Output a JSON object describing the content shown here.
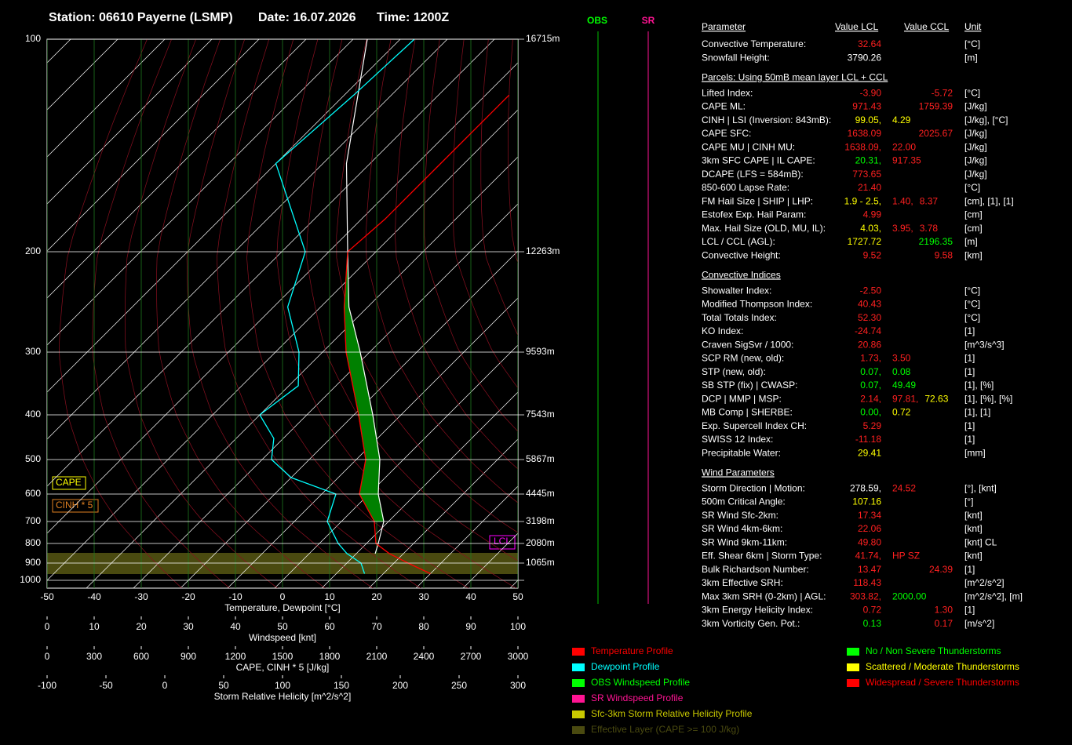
{
  "header": {
    "station": "Station: 06610 Payerne (LSMP)",
    "date": "Date: 16.07.2026",
    "time": "Time: 1200Z"
  },
  "chart_data": {
    "type": "skewt",
    "xlim": [
      -50,
      50
    ],
    "xticks": [
      -50,
      -40,
      -30,
      -20,
      -10,
      0,
      10,
      20,
      30,
      40,
      50
    ],
    "xlabel": "Temperature, Dewpoint [°C]",
    "yticks": [
      100,
      200,
      300,
      400,
      500,
      600,
      700,
      800,
      900,
      1000
    ],
    "height_labels": [
      "16715m",
      "12263m",
      "9593m",
      "7543m",
      "5867m",
      "4445m",
      "3198m",
      "2080m",
      "1065m",
      null
    ],
    "series": [
      {
        "name": "Temperature Profile",
        "color": "#ff0000",
        "pressure": [
          960,
          900,
          850,
          800,
          700,
          600,
          500,
          400,
          300,
          250,
          200,
          180,
          150,
          120
        ],
        "values": [
          30,
          23,
          17,
          12,
          7,
          -2,
          -8,
          -19,
          -35,
          -45,
          -56,
          -55,
          -55,
          -55
        ]
      },
      {
        "name": "Dewpoint Profile",
        "color": "#00ffff",
        "pressure": [
          960,
          900,
          850,
          800,
          700,
          600,
          550,
          500,
          450,
          400,
          350,
          300,
          250,
          200,
          150,
          120,
          100
        ],
        "values": [
          16,
          13,
          8,
          4,
          -3,
          -7,
          -20,
          -28,
          -32,
          -40,
          -38,
          -45,
          -57,
          -65,
          -90,
          -88,
          -87
        ]
      }
    ],
    "parcel": {
      "color": "#ffffff",
      "pressure": [
        850,
        800,
        700,
        600,
        500,
        400,
        300,
        250,
        200,
        150,
        100
      ],
      "values": [
        14,
        12.5,
        9,
        2,
        -5,
        -16,
        -32,
        -44,
        -56,
        -75,
        -97
      ]
    },
    "other_legend": [
      {
        "label": "OBS Windspeed Profile",
        "color": "#00ff00"
      },
      {
        "label": "SR Windspeed Profile",
        "color": "#ff1493"
      },
      {
        "label": "Sfc-3km Storm Relative Helicity Profile",
        "color": "#c8c800"
      },
      {
        "label": "Effective Layer (CAPE >= 100 J/kg)",
        "color": "#4a4a10"
      }
    ],
    "storm_legend": [
      {
        "label": "No / Non Severe Thunderstorms",
        "color": "#00ff00"
      },
      {
        "label": "Scattered / Moderate Thunderstorms",
        "color": "#ffff00"
      },
      {
        "label": "Widespread / Severe Thunderstorms",
        "color": "#ff0000"
      }
    ],
    "wind_axis": {
      "label": "Windspeed [knt]",
      "lim": [
        0,
        100
      ],
      "ticks": [
        0,
        10,
        20,
        30,
        40,
        50,
        60,
        70,
        80,
        90,
        100
      ]
    },
    "cape_axis": {
      "label": "CAPE, CINH * 5 [J/kg]",
      "lim": [
        0,
        3000
      ],
      "ticks": [
        0,
        300,
        600,
        900,
        1200,
        1500,
        1800,
        2100,
        2400,
        2700,
        3000
      ]
    },
    "srh_axis": {
      "label": "Storm Relative Helicity [m^2/s^2]",
      "lim": [
        -100,
        300
      ],
      "ticks": [
        -100,
        -50,
        0,
        50,
        100,
        150,
        200,
        250,
        300
      ]
    },
    "boxes": {
      "cape": "CAPE",
      "cinh": "CINH * 5",
      "lcl": "LCL"
    },
    "columns": {
      "obs": "OBS",
      "sr": "SR"
    }
  },
  "table": {
    "header": {
      "parameter": "Parameter",
      "lcl": "Value LCL",
      "ccl": "Value CCL",
      "unit": "Unit"
    },
    "sections": [
      {
        "rows": [
          {
            "label": "Convective Temperature:",
            "lcl": [
              {
                "text": "32.64",
                "color": "#ff2020"
              }
            ],
            "unit": "[°C]"
          },
          {
            "label": "Snowfall Height:",
            "lcl": [
              {
                "text": "3790.26",
                "color": "#ffffff"
              }
            ],
            "unit": "[m]"
          }
        ]
      },
      {
        "title": "Parcels: Using 50mB mean layer LCL + CCL",
        "rows": [
          {
            "label": "Lifted Index:",
            "lcl": [
              {
                "text": "-3.90",
                "color": "#ff2020"
              }
            ],
            "ccl": {
              "text": "-5.72",
              "color": "#ff2020"
            },
            "unit": "[°C]"
          },
          {
            "label": "CAPE ML:",
            "lcl": [
              {
                "text": "971.43",
                "color": "#ff2020"
              }
            ],
            "ccl": {
              "text": "1759.39",
              "color": "#ff2020"
            },
            "unit": "[J/kg]"
          },
          {
            "label": "CINH | LSI (Inversion: 843mB):",
            "lcl": [
              {
                "text": "99.05,",
                "color": "#ffff00"
              },
              {
                "text": "4.29",
                "color": "#ffff00"
              }
            ],
            "unit": "[J/kg], [°C]"
          },
          {
            "label": "CAPE SFC:",
            "lcl": [
              {
                "text": "1638.09",
                "color": "#ff2020"
              }
            ],
            "ccl": {
              "text": "2025.67",
              "color": "#ff2020"
            },
            "unit": "[J/kg]"
          },
          {
            "label": "CAPE MU | CINH MU:",
            "lcl": [
              {
                "text": "1638.09,",
                "color": "#ff2020"
              },
              {
                "text": "22.00",
                "color": "#ff2020"
              }
            ],
            "unit": "[J/kg]"
          },
          {
            "label": "3km SFC CAPE | IL CAPE:",
            "lcl": [
              {
                "text": "20.31,",
                "color": "#00ff00"
              },
              {
                "text": "917.35",
                "color": "#ff2020"
              }
            ],
            "unit": "[J/kg]"
          },
          {
            "label": "DCAPE (LFS = 584mB):",
            "lcl": [
              {
                "text": "773.65",
                "color": "#ff2020"
              }
            ],
            "unit": "[J/kg]"
          },
          {
            "label": "850-600 Lapse Rate:",
            "lcl": [
              {
                "text": "21.40",
                "color": "#ff2020"
              }
            ],
            "unit": "[°C]"
          },
          {
            "label": "FM Hail Size | SHIP | LHP:",
            "lcl": [
              {
                "text": "1.9 - 2.5,",
                "color": "#ffff00"
              },
              {
                "text": "1.40,",
                "color": "#ff2020"
              },
              {
                "text": "8.37",
                "color": "#ff2020"
              }
            ],
            "unit": "[cm], [1], [1]"
          },
          {
            "label": "Estofex Exp. Hail Param:",
            "lcl": [
              {
                "text": "4.99",
                "color": "#ff2020"
              }
            ],
            "unit": "[cm]"
          },
          {
            "label": "Max. Hail Size (OLD, MU, IL):",
            "lcl": [
              {
                "text": "4.03,",
                "color": "#ffff00"
              },
              {
                "text": "3.95,",
                "color": "#ff2020"
              },
              {
                "text": "3.78",
                "color": "#ff2020"
              }
            ],
            "unit": "[cm]"
          },
          {
            "label": "LCL / CCL (AGL):",
            "lcl": [
              {
                "text": "1727.72",
                "color": "#ffff00"
              }
            ],
            "ccl": {
              "text": "2196.35",
              "color": "#00ff00"
            },
            "unit": "[m]"
          },
          {
            "label": "Convective Height:",
            "lcl": [
              {
                "text": "9.52",
                "color": "#ff2020"
              }
            ],
            "ccl": {
              "text": "9.58",
              "color": "#ff2020"
            },
            "unit": "[km]"
          }
        ]
      },
      {
        "title": "Convective Indices",
        "rows": [
          {
            "label": "Showalter Index:",
            "lcl": [
              {
                "text": "-2.50",
                "color": "#ff2020"
              }
            ],
            "unit": "[°C]"
          },
          {
            "label": "Modified Thompson Index:",
            "lcl": [
              {
                "text": "40.43",
                "color": "#ff2020"
              }
            ],
            "unit": "[°C]"
          },
          {
            "label": "Total Totals Index:",
            "lcl": [
              {
                "text": "52.30",
                "color": "#ff2020"
              }
            ],
            "unit": "[°C]"
          },
          {
            "label": "KO Index:",
            "lcl": [
              {
                "text": "-24.74",
                "color": "#ff2020"
              }
            ],
            "unit": "[1]"
          },
          {
            "label": "Craven SigSvr / 1000:",
            "lcl": [
              {
                "text": "20.86",
                "color": "#ff2020"
              }
            ],
            "unit": "[m^3/s^3]"
          },
          {
            "label": "SCP RM (new, old):",
            "lcl": [
              {
                "text": "1.73,",
                "color": "#ff2020"
              },
              {
                "text": "3.50",
                "color": "#ff2020"
              }
            ],
            "unit": "[1]"
          },
          {
            "label": "STP (new, old):",
            "lcl": [
              {
                "text": "0.07,",
                "color": "#00ff00"
              },
              {
                "text": "0.08",
                "color": "#00ff00"
              }
            ],
            "unit": "[1]"
          },
          {
            "label": "SB STP (fix) | CWASP:",
            "lcl": [
              {
                "text": "0.07,",
                "color": "#00ff00"
              },
              {
                "text": "49.49",
                "color": "#00ff00"
              }
            ],
            "unit": "[1], [%]"
          },
          {
            "label": "DCP | MMP | MSP:",
            "lcl": [
              {
                "text": "2.14,",
                "color": "#ff2020"
              },
              {
                "text": "97.81,",
                "color": "#ff2020"
              },
              {
                "text": "72.63",
                "color": "#ffff00"
              }
            ],
            "unit": "[1], [%], [%]"
          },
          {
            "label": "MB Comp | SHERBE:",
            "lcl": [
              {
                "text": "0.00,",
                "color": "#00ff00"
              },
              {
                "text": "0.72",
                "color": "#ffff00"
              }
            ],
            "unit": "[1], [1]"
          },
          {
            "label": "Exp. Supercell Index CH:",
            "lcl": [
              {
                "text": "5.29",
                "color": "#ff2020"
              }
            ],
            "unit": "[1]"
          },
          {
            "label": "SWISS 12 Index:",
            "lcl": [
              {
                "text": "-11.18",
                "color": "#ff2020"
              }
            ],
            "unit": "[1]"
          },
          {
            "label": "Precipitable Water:",
            "lcl": [
              {
                "text": "29.41",
                "color": "#ffff00"
              }
            ],
            "unit": "[mm]"
          }
        ]
      },
      {
        "title": "Wind Parameters",
        "rows": [
          {
            "label": "Storm Direction | Motion:",
            "lcl": [
              {
                "text": "278.59,",
                "color": "#ffffff"
              },
              {
                "text": "24.52",
                "color": "#ff2020"
              }
            ],
            "unit": "[°], [knt]"
          },
          {
            "label": "500m Critical Angle:",
            "lcl": [
              {
                "text": "107.16",
                "color": "#ffff00"
              }
            ],
            "unit": "[°]"
          },
          {
            "label": "SR Wind Sfc-2km:",
            "lcl": [
              {
                "text": "17.34",
                "color": "#ff2020"
              }
            ],
            "unit": "[knt]"
          },
          {
            "label": "SR Wind 4km-6km:",
            "lcl": [
              {
                "text": "22.06",
                "color": "#ff2020"
              }
            ],
            "unit": "[knt]"
          },
          {
            "label": "SR Wind 9km-11km:",
            "lcl": [
              {
                "text": "49.80",
                "color": "#ff2020"
              }
            ],
            "unit": "[knt] CL"
          },
          {
            "label": "Eff. Shear 6km | Storm Type:",
            "lcl": [
              {
                "text": "41.74,",
                "color": "#ff2020"
              },
              {
                "text": "HP SZ",
                "color": "#ff2020"
              }
            ],
            "unit": "[knt]"
          },
          {
            "label": "Bulk Richardson Number:",
            "lcl": [
              {
                "text": "13.47",
                "color": "#ff2020"
              }
            ],
            "ccl": {
              "text": "24.39",
              "color": "#ff2020"
            },
            "unit": "[1]"
          },
          {
            "label": "3km Effective SRH:",
            "lcl": [
              {
                "text": "118.43",
                "color": "#ff2020"
              }
            ],
            "unit": "[m^2/s^2]"
          },
          {
            "label": "Max 3km SRH (0-2km) | AGL:",
            "lcl": [
              {
                "text": "303.82,",
                "color": "#ff2020"
              },
              {
                "text": "2000.00",
                "color": "#00ff00"
              }
            ],
            "unit": "[m^2/s^2], [m]"
          },
          {
            "label": "3km Energy Helicity Index:",
            "lcl": [
              {
                "text": "0.72",
                "color": "#ff2020"
              }
            ],
            "ccl": {
              "text": "1.30",
              "color": "#ff2020"
            },
            "unit": "[1]"
          },
          {
            "label": "3km Vorticity Gen. Pot.:",
            "lcl": [
              {
                "text": "0.13",
                "color": "#00ff00"
              }
            ],
            "ccl": {
              "text": "0.17",
              "color": "#ff2020"
            },
            "unit": "[m/s^2]"
          }
        ]
      }
    ]
  }
}
